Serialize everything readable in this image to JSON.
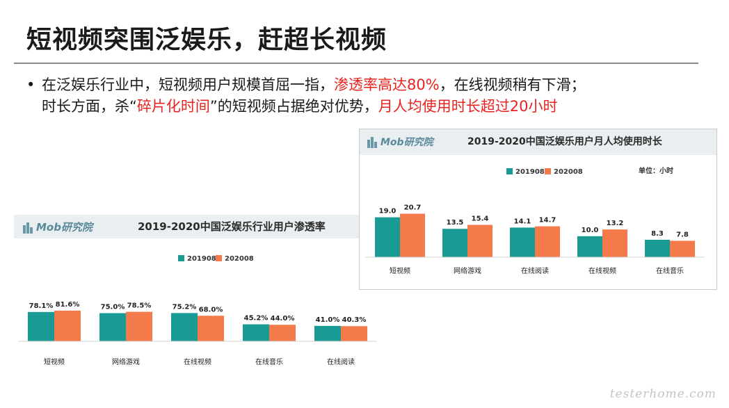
{
  "slide": {
    "title": "短视频突围泛娱乐，赶超长视频",
    "bullet": {
      "line1_a": "在泛娱乐行业中，短视频用户规模首屈一指，",
      "line1_hl": "渗透率高达80%",
      "line1_b": "，在线视频稍有下滑；",
      "line2_a": "时长方面，杀“",
      "line2_hl": "碎片化时间",
      "line2_b": "”的短视频占据绝对优势，",
      "line2_hl2": "月人均使用时长超过20小时"
    }
  },
  "watermark": "testerhome.com",
  "colors": {
    "series_a": "#1a9a94",
    "series_b": "#f47a4b",
    "highlight": "#e8231f"
  },
  "chart_data": [
    {
      "type": "bar",
      "title": "2019-2020中国泛娱乐行业用户渗透率",
      "logo": "Mob研究院",
      "categories": [
        "短视频",
        "网络游戏",
        "在线视频",
        "在线音乐",
        "在线阅读"
      ],
      "series": [
        {
          "name": "201908",
          "values": [
            78.1,
            75.0,
            75.2,
            45.2,
            41.0
          ],
          "labels": [
            "78.1%",
            "75.0%",
            "75.2%",
            "45.2%",
            "41.0%"
          ]
        },
        {
          "name": "202008",
          "values": [
            81.6,
            78.5,
            68.0,
            44.0,
            40.3
          ],
          "labels": [
            "81.6%",
            "78.5%",
            "68.0%",
            "44.0%",
            "40.3%"
          ]
        }
      ],
      "legend": "top-center",
      "grid": false
    },
    {
      "type": "bar",
      "title": "2019-2020中国泛娱乐用户月人均使用时长",
      "logo": "Mob研究院",
      "unit": "单位：小时",
      "categories": [
        "短视频",
        "网络游戏",
        "在线阅读",
        "在线视频",
        "在线音乐"
      ],
      "series": [
        {
          "name": "201908",
          "values": [
            19.0,
            13.5,
            14.1,
            10.0,
            8.3
          ],
          "labels": [
            "19.0",
            "13.5",
            "14.1",
            "10.0",
            "8.3"
          ]
        },
        {
          "name": "202008",
          "values": [
            20.7,
            15.4,
            14.7,
            13.2,
            7.8
          ],
          "labels": [
            "20.7",
            "15.4",
            "14.7",
            "13.2",
            "7.8"
          ]
        }
      ],
      "legend": "top-center",
      "grid": false
    }
  ]
}
